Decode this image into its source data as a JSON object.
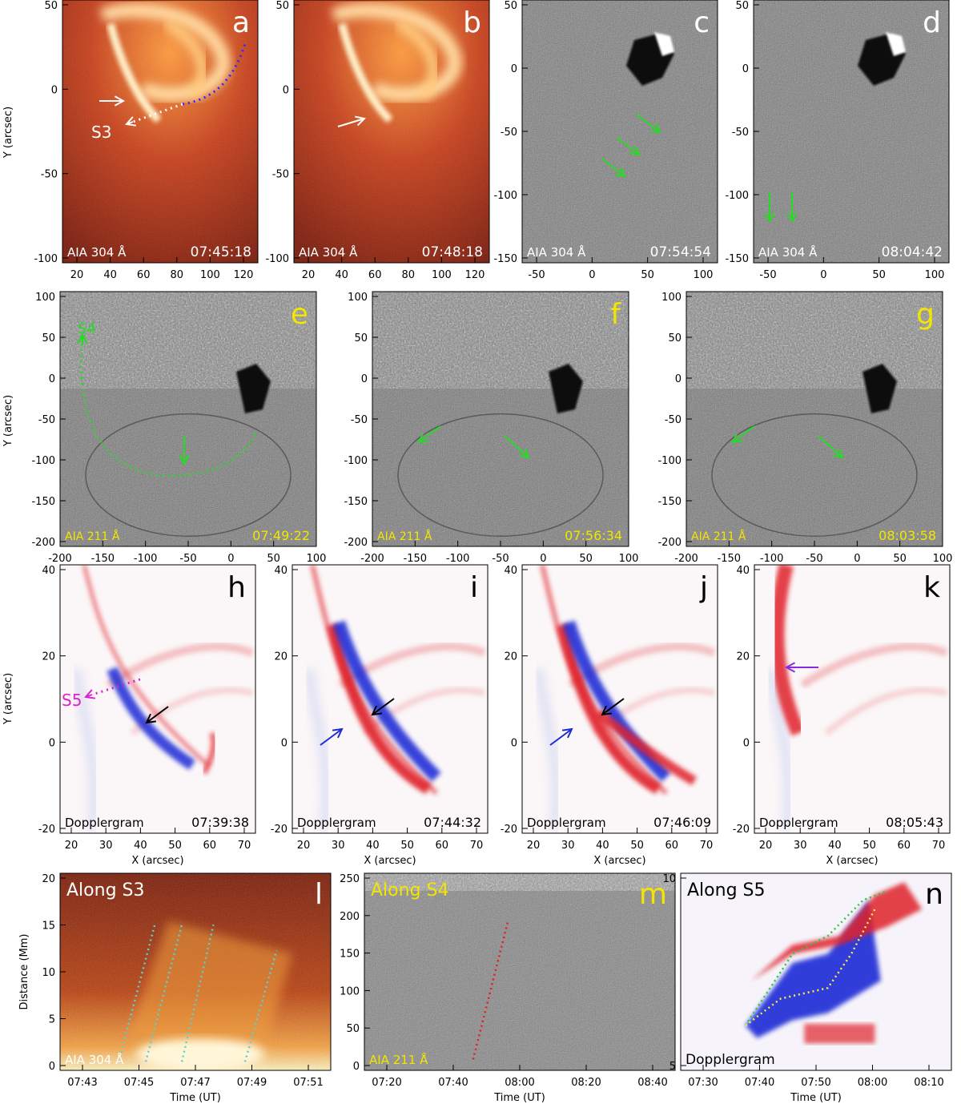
{
  "figure": {
    "row1": {
      "y_axis_label": "Y (arcsec)",
      "panels": [
        {
          "letter": "a",
          "instrument": "AIA  304  Å",
          "time": "07:45:18",
          "theme": "aia304",
          "x_ticks": [
            "20",
            "40",
            "60",
            "80",
            "100",
            "120"
          ],
          "y_ticks": [
            "50",
            "0",
            "-50",
            "-100"
          ],
          "slit_label": "S3",
          "arrows": [
            {
              "color": "white",
              "points_to": "bright loop"
            }
          ]
        },
        {
          "letter": "b",
          "instrument": "AIA  304  Å",
          "time": "07:48:18",
          "theme": "aia304",
          "x_ticks": [
            "20",
            "40",
            "60",
            "80",
            "100",
            "120"
          ],
          "y_ticks": [
            "50",
            "0",
            "-50",
            "-100"
          ],
          "arrows": [
            {
              "color": "white"
            }
          ]
        },
        {
          "letter": "c",
          "instrument": "AIA  304  Å",
          "time": "07:54:54",
          "theme": "diff",
          "x_ticks": [
            "-50",
            "0",
            "50",
            "100"
          ],
          "y_ticks": [
            "50",
            "0",
            "-50",
            "-100",
            "-150"
          ],
          "arrows": [
            {
              "color": "green"
            },
            {
              "color": "green"
            },
            {
              "color": "green"
            }
          ]
        },
        {
          "letter": "d",
          "instrument": "AIA  304  Å",
          "time": "08:04:42",
          "theme": "diff",
          "x_ticks": [
            "-50",
            "0",
            "50",
            "100"
          ],
          "y_ticks": [
            "50",
            "0",
            "-50",
            "-100",
            "-150"
          ],
          "arrows": [
            {
              "color": "green"
            },
            {
              "color": "green"
            }
          ]
        }
      ]
    },
    "row2": {
      "y_axis_label": "Y (arcsec)",
      "panels": [
        {
          "letter": "e",
          "instrument": "AIA  211  Å",
          "time": "07:49:22",
          "slit_label": "S4",
          "x_ticks": [
            "-200",
            "-150",
            "-100",
            "-50",
            "0",
            "50",
            "100"
          ],
          "y_ticks": [
            "100",
            "50",
            "0",
            "-50",
            "-100",
            "-150",
            "-200"
          ]
        },
        {
          "letter": "f",
          "instrument": "AIA  211  Å",
          "time": "07:56:34",
          "x_ticks": [
            "-200",
            "-150",
            "-100",
            "-50",
            "0",
            "50",
            "100"
          ],
          "y_ticks": [
            "100",
            "50",
            "0",
            "-50",
            "-100",
            "-150",
            "-200"
          ]
        },
        {
          "letter": "g",
          "instrument": "AIA  211  Å",
          "time": "08:03:58",
          "x_ticks": [
            "-200",
            "-150",
            "-100",
            "-50",
            "0",
            "50",
            "100"
          ],
          "y_ticks": [
            "100",
            "50",
            "0",
            "-50",
            "-100",
            "-150",
            "-200"
          ]
        }
      ]
    },
    "row3": {
      "y_axis_label": "Y (arcsec)",
      "x_axis_label": "X (arcsec)",
      "colors": {
        "redshift": "#e0202a",
        "blueshift": "#1a2bd6",
        "s5": "#e020d0",
        "arrow_black": "#000000",
        "arrow_blue": "#1a2bd6",
        "arrow_purple": "#8a2be2"
      },
      "panels": [
        {
          "letter": "h",
          "instrument": "Dopplergram",
          "time": "07:39:38",
          "slit_label": "S5",
          "x_ticks": [
            "20",
            "30",
            "40",
            "50",
            "60",
            "70"
          ],
          "y_ticks": [
            "40",
            "20",
            "0",
            "-20"
          ]
        },
        {
          "letter": "i",
          "instrument": "Dopplergram",
          "time": "07:44:32",
          "x_ticks": [
            "20",
            "30",
            "40",
            "50",
            "60",
            "70"
          ],
          "y_ticks": [
            "40",
            "20",
            "0",
            "-20"
          ]
        },
        {
          "letter": "j",
          "instrument": "Dopplergram",
          "time": "07:46:09",
          "x_ticks": [
            "20",
            "30",
            "40",
            "50",
            "60",
            "70"
          ],
          "y_ticks": [
            "40",
            "20",
            "0",
            "-20"
          ]
        },
        {
          "letter": "k",
          "instrument": "Dopplergram",
          "time": "08:05:43",
          "x_ticks": [
            "20",
            "30",
            "40",
            "50",
            "60",
            "70"
          ],
          "y_ticks": [
            "40",
            "20",
            "0",
            "-20"
          ]
        }
      ]
    },
    "row4": {
      "y_axis_label": "Distance (Mm)",
      "x_axis_label": "Time (UT)",
      "panels": [
        {
          "letter": "l",
          "title": "Along S3",
          "instrument": "AIA  304  Å",
          "x_ticks": [
            "07:43",
            "07:45",
            "07:47",
            "07:49",
            "07:51"
          ],
          "y_ticks": [
            "20",
            "15",
            "10",
            "5",
            "0"
          ]
        },
        {
          "letter": "m",
          "title": "Along S4",
          "instrument": "AIA  211  Å",
          "x_ticks": [
            "07:20",
            "07:40",
            "08:00",
            "08:20",
            "08:40"
          ],
          "y_ticks": [
            "250",
            "200",
            "150",
            "100",
            "50",
            "0"
          ]
        },
        {
          "letter": "n",
          "title": "Along S5",
          "instrument": "Dopplergram",
          "x_ticks": [
            "07:30",
            "07:40",
            "07:50",
            "08:00",
            "08:10"
          ],
          "y_ticks": [
            "10",
            "5"
          ]
        }
      ]
    }
  },
  "chart_data": [
    {
      "type": "heatmap",
      "panel": "l",
      "title": "Along S3",
      "xlabel": "Time (UT)",
      "ylabel": "Distance (Mm)",
      "ylim": [
        0,
        23
      ],
      "xlim": [
        "07:42",
        "07:52"
      ],
      "tracks": [
        {
          "name": "",
          "points": [
            [
              "07:44:10",
              1
            ],
            [
              "07:45:30",
              17
            ]
          ]
        },
        {
          "name": "",
          "points": [
            [
              "07:45:10",
              1
            ],
            [
              "07:46:30",
              17
            ]
          ]
        },
        {
          "name": "",
          "points": [
            [
              "07:46:30",
              1
            ],
            [
              "07:47:40",
              17
            ]
          ]
        },
        {
          "name": "",
          "points": [
            [
              "07:48:50",
              1
            ],
            [
              "07:50:00",
              14
            ]
          ]
        }
      ]
    },
    {
      "type": "heatmap",
      "panel": "m",
      "title": "Along S4",
      "xlabel": "Time (UT)",
      "ylabel": "",
      "ylim": [
        0,
        270
      ],
      "xlim": [
        "07:20",
        "08:40"
      ],
      "tracks": [
        {
          "name": "",
          "points": [
            [
              "07:48",
              15
            ],
            [
              "07:57",
              205
            ]
          ]
        }
      ]
    },
    {
      "type": "heatmap",
      "panel": "n",
      "title": "Along S5",
      "xlabel": "Time (UT)",
      "ylabel": "",
      "ylim": [
        0,
        11
      ],
      "xlim": [
        "07:25",
        "08:11"
      ],
      "tracks": [
        {
          "name": "",
          "color": "green",
          "points": [
            [
              "07:36",
              2.5
            ],
            [
              "07:44",
              6.5
            ],
            [
              "07:50",
              7.5
            ],
            [
              "07:56",
              9.5
            ],
            [
              "08:00",
              10
            ]
          ]
        },
        {
          "name": "",
          "color": "yellow",
          "points": [
            [
              "07:36",
              2.5
            ],
            [
              "07:42",
              4
            ],
            [
              "07:50",
              4.6
            ],
            [
              "07:54",
              6.5
            ],
            [
              "07:58",
              9
            ]
          ]
        }
      ]
    }
  ]
}
